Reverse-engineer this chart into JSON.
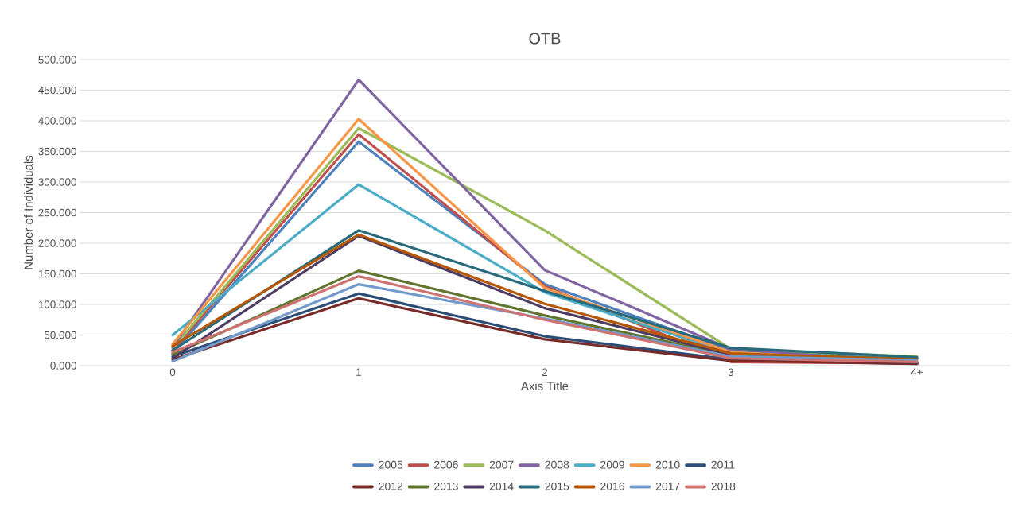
{
  "chart_data": {
    "type": "line",
    "title": "OTB",
    "xlabel": "Axis Title",
    "ylabel": "Number of Individuals",
    "categories": [
      "0",
      "1",
      "2",
      "3",
      "4+"
    ],
    "series": [
      {
        "name": "2005",
        "color": "#4f81bd",
        "values": [
          20,
          366,
          133,
          25,
          12
        ]
      },
      {
        "name": "2006",
        "color": "#c0504d",
        "values": [
          25,
          378,
          130,
          6,
          4
        ]
      },
      {
        "name": "2007",
        "color": "#9bbb59",
        "values": [
          28,
          388,
          221,
          27,
          15
        ]
      },
      {
        "name": "2008",
        "color": "#8064a2",
        "values": [
          30,
          467,
          156,
          27,
          5
        ]
      },
      {
        "name": "2009",
        "color": "#4bacc6",
        "values": [
          50,
          296,
          120,
          20,
          5
        ]
      },
      {
        "name": "2010",
        "color": "#f79646",
        "values": [
          35,
          403,
          127,
          22,
          5
        ]
      },
      {
        "name": "2011",
        "color": "#2c4d75",
        "values": [
          15,
          118,
          48,
          10,
          3
        ]
      },
      {
        "name": "2012",
        "color": "#772c2a",
        "values": [
          10,
          110,
          43,
          8,
          3
        ]
      },
      {
        "name": "2013",
        "color": "#5f7530",
        "values": [
          18,
          155,
          82,
          17,
          12
        ]
      },
      {
        "name": "2014",
        "color": "#4d3b62",
        "values": [
          12,
          212,
          94,
          18,
          5
        ]
      },
      {
        "name": "2015",
        "color": "#276a7c",
        "values": [
          25,
          221,
          122,
          29,
          14
        ]
      },
      {
        "name": "2016",
        "color": "#b65708",
        "values": [
          32,
          214,
          101,
          20,
          10
        ]
      },
      {
        "name": "2017",
        "color": "#729aca",
        "values": [
          7,
          133,
          77,
          15,
          9
        ]
      },
      {
        "name": "2018",
        "color": "#cd7371",
        "values": [
          22,
          146,
          75,
          12,
          6
        ]
      }
    ],
    "ylim": [
      0,
      500
    ],
    "yticks": [
      {
        "value": 0,
        "label": "0.000"
      },
      {
        "value": 50,
        "label": "50.000"
      },
      {
        "value": 100,
        "label": "100.000"
      },
      {
        "value": 150,
        "label": "150.000"
      },
      {
        "value": 200,
        "label": "200.000"
      },
      {
        "value": 250,
        "label": "250.000"
      },
      {
        "value": 300,
        "label": "300.000"
      },
      {
        "value": 350,
        "label": "350.000"
      },
      {
        "value": 400,
        "label": "400.000"
      },
      {
        "value": 450,
        "label": "450.000"
      },
      {
        "value": 500,
        "label": "500.000"
      }
    ],
    "grid": "y",
    "legend": "bottom",
    "marker": "none",
    "line_style": "solid"
  }
}
